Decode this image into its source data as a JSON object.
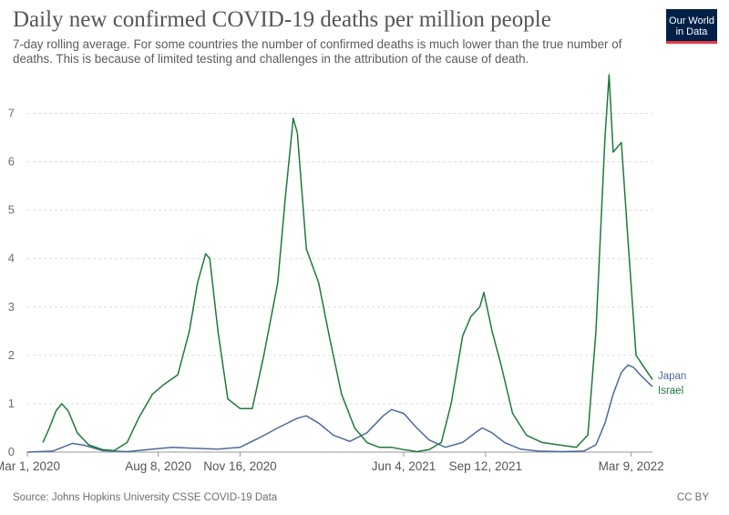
{
  "header": {
    "title": "Daily new confirmed COVID-19 deaths per million people",
    "subtitle": "7-day rolling average. For some countries the number of confirmed deaths is much lower than the true number of deaths. This is because of limited testing and challenges in the attribution of the cause of death."
  },
  "logo": {
    "line1": "Our World",
    "line2": "in Data",
    "bg_color": "#002147",
    "accent_color": "#e63946"
  },
  "footer": {
    "source": "Source: Johns Hopkins University CSSE COVID-19 Data",
    "license": "CC BY"
  },
  "chart_data": {
    "type": "line",
    "title": "Daily new confirmed COVID-19 deaths per million people",
    "xlabel": "",
    "ylabel": "",
    "ylim": [
      0,
      7.8
    ],
    "xlim": [
      "2020-03-01",
      "2022-04-04"
    ],
    "yticks": [
      0,
      1,
      2,
      3,
      4,
      5,
      6,
      7
    ],
    "xticks": [
      {
        "label": "Mar 1, 2020",
        "date": "2020-03-01"
      },
      {
        "label": "Aug 8, 2020",
        "date": "2020-08-08"
      },
      {
        "label": "Nov 16, 2020",
        "date": "2020-11-16"
      },
      {
        "label": "Jun 4, 2021",
        "date": "2021-06-04"
      },
      {
        "label": "Sep 12, 2021",
        "date": "2021-09-12"
      },
      {
        "label": "Mar 9, 2022",
        "date": "2022-03-09"
      }
    ],
    "grid": "horizontal-dashed",
    "legend": "line-end labels",
    "series": [
      {
        "name": "Japan",
        "color": "#4c6a9c",
        "points": [
          [
            "2020-03-01",
            0.0
          ],
          [
            "2020-04-01",
            0.02
          ],
          [
            "2020-04-25",
            0.18
          ],
          [
            "2020-05-10",
            0.14
          ],
          [
            "2020-06-01",
            0.03
          ],
          [
            "2020-07-01",
            0.01
          ],
          [
            "2020-08-01",
            0.06
          ],
          [
            "2020-08-25",
            0.1
          ],
          [
            "2020-09-20",
            0.08
          ],
          [
            "2020-10-20",
            0.06
          ],
          [
            "2020-11-16",
            0.1
          ],
          [
            "2020-12-10",
            0.3
          ],
          [
            "2021-01-01",
            0.5
          ],
          [
            "2021-01-25",
            0.7
          ],
          [
            "2021-02-05",
            0.75
          ],
          [
            "2021-02-20",
            0.6
          ],
          [
            "2021-03-10",
            0.35
          ],
          [
            "2021-03-30",
            0.22
          ],
          [
            "2021-04-20",
            0.4
          ],
          [
            "2021-05-10",
            0.75
          ],
          [
            "2021-05-20",
            0.88
          ],
          [
            "2021-06-04",
            0.8
          ],
          [
            "2021-06-20",
            0.5
          ],
          [
            "2021-07-05",
            0.25
          ],
          [
            "2021-07-25",
            0.1
          ],
          [
            "2021-08-15",
            0.2
          ],
          [
            "2021-09-01",
            0.42
          ],
          [
            "2021-09-08",
            0.5
          ],
          [
            "2021-09-20",
            0.4
          ],
          [
            "2021-10-05",
            0.2
          ],
          [
            "2021-10-25",
            0.06
          ],
          [
            "2021-11-15",
            0.02
          ],
          [
            "2021-12-15",
            0.01
          ],
          [
            "2022-01-10",
            0.02
          ],
          [
            "2022-01-25",
            0.15
          ],
          [
            "2022-02-05",
            0.6
          ],
          [
            "2022-02-15",
            1.2
          ],
          [
            "2022-02-25",
            1.65
          ],
          [
            "2022-03-05",
            1.8
          ],
          [
            "2022-03-12",
            1.75
          ],
          [
            "2022-03-20",
            1.6
          ],
          [
            "2022-04-04",
            1.35
          ]
        ]
      },
      {
        "name": "Israel",
        "color": "#1d7a3a",
        "points": [
          [
            "2020-03-20",
            0.2
          ],
          [
            "2020-03-28",
            0.5
          ],
          [
            "2020-04-05",
            0.85
          ],
          [
            "2020-04-12",
            1.0
          ],
          [
            "2020-04-20",
            0.85
          ],
          [
            "2020-05-01",
            0.4
          ],
          [
            "2020-05-15",
            0.15
          ],
          [
            "2020-06-01",
            0.05
          ],
          [
            "2020-06-15",
            0.03
          ],
          [
            "2020-07-01",
            0.2
          ],
          [
            "2020-07-15",
            0.7
          ],
          [
            "2020-08-01",
            1.2
          ],
          [
            "2020-08-15",
            1.4
          ],
          [
            "2020-09-01",
            1.6
          ],
          [
            "2020-09-15",
            2.5
          ],
          [
            "2020-09-25",
            3.5
          ],
          [
            "2020-10-05",
            4.1
          ],
          [
            "2020-10-10",
            4.0
          ],
          [
            "2020-10-20",
            2.5
          ],
          [
            "2020-11-01",
            1.1
          ],
          [
            "2020-11-16",
            0.9
          ],
          [
            "2020-12-01",
            0.9
          ],
          [
            "2020-12-15",
            2.0
          ],
          [
            "2021-01-01",
            3.5
          ],
          [
            "2021-01-10",
            5.2
          ],
          [
            "2021-01-20",
            6.9
          ],
          [
            "2021-01-25",
            6.6
          ],
          [
            "2021-02-05",
            4.2
          ],
          [
            "2021-02-20",
            3.5
          ],
          [
            "2021-03-05",
            2.4
          ],
          [
            "2021-03-20",
            1.2
          ],
          [
            "2021-04-05",
            0.5
          ],
          [
            "2021-04-20",
            0.2
          ],
          [
            "2021-05-05",
            0.1
          ],
          [
            "2021-05-20",
            0.1
          ],
          [
            "2021-06-04",
            0.05
          ],
          [
            "2021-06-20",
            0.01
          ],
          [
            "2021-07-05",
            0.05
          ],
          [
            "2021-07-20",
            0.2
          ],
          [
            "2021-08-01",
            1.0
          ],
          [
            "2021-08-15",
            2.4
          ],
          [
            "2021-08-25",
            2.8
          ],
          [
            "2021-09-05",
            3.0
          ],
          [
            "2021-09-10",
            3.3
          ],
          [
            "2021-09-20",
            2.5
          ],
          [
            "2021-10-01",
            1.8
          ],
          [
            "2021-10-15",
            0.8
          ],
          [
            "2021-11-01",
            0.35
          ],
          [
            "2021-11-20",
            0.2
          ],
          [
            "2021-12-10",
            0.15
          ],
          [
            "2022-01-01",
            0.1
          ],
          [
            "2022-01-15",
            0.35
          ],
          [
            "2022-01-25",
            2.5
          ],
          [
            "2022-02-05",
            6.5
          ],
          [
            "2022-02-10",
            7.8
          ],
          [
            "2022-02-15",
            6.2
          ],
          [
            "2022-02-25",
            6.4
          ],
          [
            "2022-03-05",
            4.4
          ],
          [
            "2022-03-15",
            2.0
          ],
          [
            "2022-04-04",
            1.5
          ]
        ]
      }
    ]
  }
}
